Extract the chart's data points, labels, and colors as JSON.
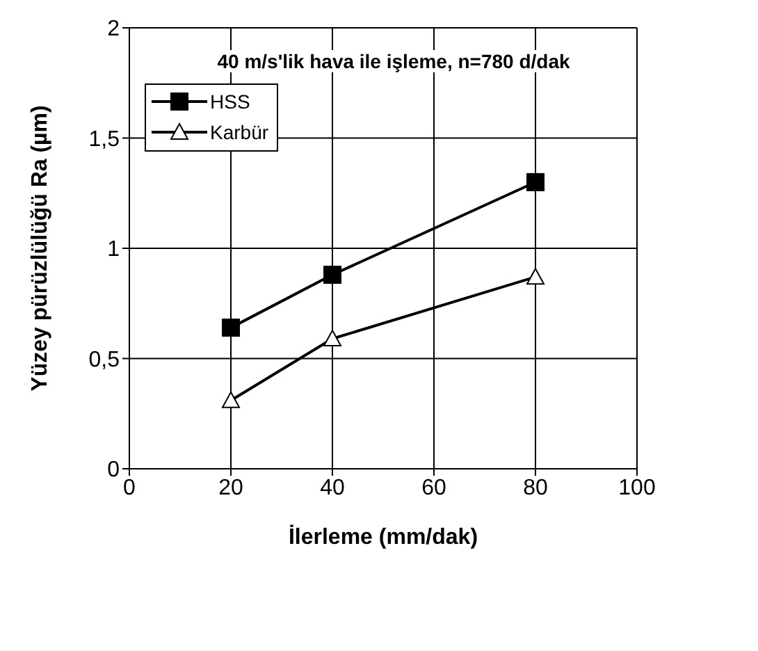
{
  "chart_data": {
    "type": "line",
    "xlabel": "İlerleme (mm/dak)",
    "ylabel": "Yüzey pürüzlülüğü Ra (µm)",
    "annotations": [
      "40 m/s'lik hava ile işleme, n=780 d/dak"
    ],
    "x": [
      20,
      40,
      80
    ],
    "series": [
      {
        "name": "HSS",
        "color": "#000000",
        "marker": "square",
        "values": [
          0.64,
          0.88,
          1.3
        ]
      },
      {
        "name": "Karbür",
        "color": "#000000",
        "marker": "triangle",
        "values": [
          0.31,
          0.59,
          0.87
        ]
      }
    ],
    "xlim": [
      0,
      100
    ],
    "xticks": [
      0,
      20,
      40,
      60,
      80,
      100
    ],
    "ylim": [
      0,
      2
    ],
    "yticks": [
      0,
      {
        "value": 0.5,
        "label": "0,5"
      },
      1,
      {
        "value": 1.5,
        "label": "1,5"
      },
      2
    ],
    "grid": true,
    "legend": "top left",
    "line_style": "solid"
  }
}
